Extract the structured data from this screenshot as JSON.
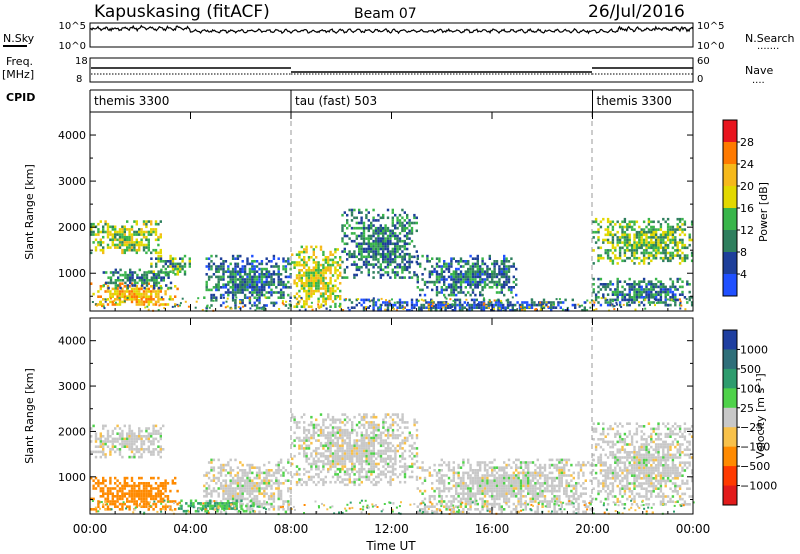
{
  "header": {
    "station": "Kapuskasing (fitACF)",
    "beam": "Beam 07",
    "date": "26/Jul/2016"
  },
  "nsky_panel": {
    "label": "N.Sky",
    "left_ticks": [
      "10^5",
      "10^0"
    ],
    "right_ticks": [
      "10^5",
      "10^0"
    ],
    "right_label": "N.Search",
    "right_marker": "·······"
  },
  "freq_panel": {
    "label_line1": "Freq.",
    "label_line2": "[MHz]",
    "left_ticks": [
      "18",
      "8"
    ],
    "right_ticks": [
      "60",
      "0"
    ],
    "right_label": "Nave",
    "right_marker": "····"
  },
  "cpid": {
    "label": "CPID",
    "segments": [
      {
        "name": "themis 3300",
        "start_h": 0,
        "end_h": 8
      },
      {
        "name": "tau (fast) 503",
        "start_h": 8,
        "end_h": 20
      },
      {
        "name": "themis 3300",
        "start_h": 20,
        "end_h": 24
      }
    ]
  },
  "x_axis": {
    "label": "Time UT",
    "ticks": [
      "00:00",
      "04:00",
      "08:00",
      "12:00",
      "16:00",
      "20:00",
      "00:00"
    ]
  },
  "chart_data": [
    {
      "type": "heatmap",
      "panel": "power",
      "ylabel": "Slant Range [km]",
      "xlabel": "Time UT",
      "xlim_hours": [
        0,
        24
      ],
      "ylim_km": [
        180,
        4500
      ],
      "yticks": [
        1000,
        2000,
        3000,
        4000
      ],
      "colorbar": {
        "label": "Power [dB]",
        "ticks": [
          "28",
          "24",
          "20",
          "16",
          "12",
          "8",
          "4"
        ],
        "colors": [
          "#e8141e",
          "#ff7a00",
          "#f6b91b",
          "#e2d800",
          "#39b54a",
          "#2f7f5e",
          "#1e3f9a",
          "#2050ff"
        ]
      },
      "echo_regions": [
        {
          "t0": 0.0,
          "t1": 2.8,
          "r0": 1450,
          "r1": 2150,
          "power_db": 16
        },
        {
          "t0": 0.0,
          "t1": 3.5,
          "r0": 300,
          "r1": 800,
          "power_db": 22
        },
        {
          "t0": 0.5,
          "t1": 3.3,
          "r0": 700,
          "r1": 1100,
          "power_db": 10
        },
        {
          "t0": 2.3,
          "t1": 4.0,
          "r0": 1000,
          "r1": 1400,
          "power_db": 12
        },
        {
          "t0": 4.5,
          "t1": 8.0,
          "r0": 250,
          "r1": 1400,
          "power_db": 8
        },
        {
          "t0": 8.0,
          "t1": 10.0,
          "r0": 250,
          "r1": 1600,
          "power_db": 18
        },
        {
          "t0": 10.0,
          "t1": 13.0,
          "r0": 900,
          "r1": 2400,
          "power_db": 10
        },
        {
          "t0": 13.0,
          "t1": 17.0,
          "r0": 500,
          "r1": 1400,
          "power_db": 9
        },
        {
          "t0": 10.0,
          "t1": 20.0,
          "r0": 200,
          "r1": 450,
          "power_db": 6
        },
        {
          "t0": 20.0,
          "t1": 24.0,
          "r0": 1200,
          "r1": 2200,
          "power_db": 14
        },
        {
          "t0": 20.0,
          "t1": 24.0,
          "r0": 300,
          "r1": 900,
          "power_db": 9
        }
      ]
    },
    {
      "type": "heatmap",
      "panel": "velocity",
      "ylabel": "Slant Range [km]",
      "xlabel": "Time UT",
      "xlim_hours": [
        0,
        24
      ],
      "ylim_km": [
        180,
        4500
      ],
      "yticks": [
        1000,
        2000,
        3000,
        4000
      ],
      "colorbar": {
        "label": "Velocity [m s⁻¹]",
        "ticks": [
          "1000",
          "500",
          "100",
          "25",
          "−25",
          "−100",
          "−500",
          "−1000"
        ],
        "colors": [
          "#1f3fa0",
          "#2f6f7a",
          "#2e9c6e",
          "#4fd24a",
          "#c8c8c8",
          "#f8c14a",
          "#ff8a00",
          "#ff3a00",
          "#e21b1b"
        ]
      },
      "echo_regions": [
        {
          "t0": 0.0,
          "t1": 3.0,
          "r0": 1450,
          "r1": 2150,
          "velocity": 0
        },
        {
          "t0": 0.0,
          "t1": 3.5,
          "r0": 300,
          "r1": 1000,
          "velocity": -200
        },
        {
          "t0": 4.5,
          "t1": 8.0,
          "r0": 250,
          "r1": 1400,
          "velocity": 0
        },
        {
          "t0": 3.5,
          "t1": 6.5,
          "r0": 250,
          "r1": 500,
          "velocity": 100
        },
        {
          "t0": 8.0,
          "t1": 13.0,
          "r0": 800,
          "r1": 2400,
          "velocity": 0
        },
        {
          "t0": 13.0,
          "t1": 20.0,
          "r0": 200,
          "r1": 1400,
          "velocity": 0
        },
        {
          "t0": 20.0,
          "t1": 24.0,
          "r0": 400,
          "r1": 2200,
          "velocity": 0
        }
      ]
    }
  ]
}
